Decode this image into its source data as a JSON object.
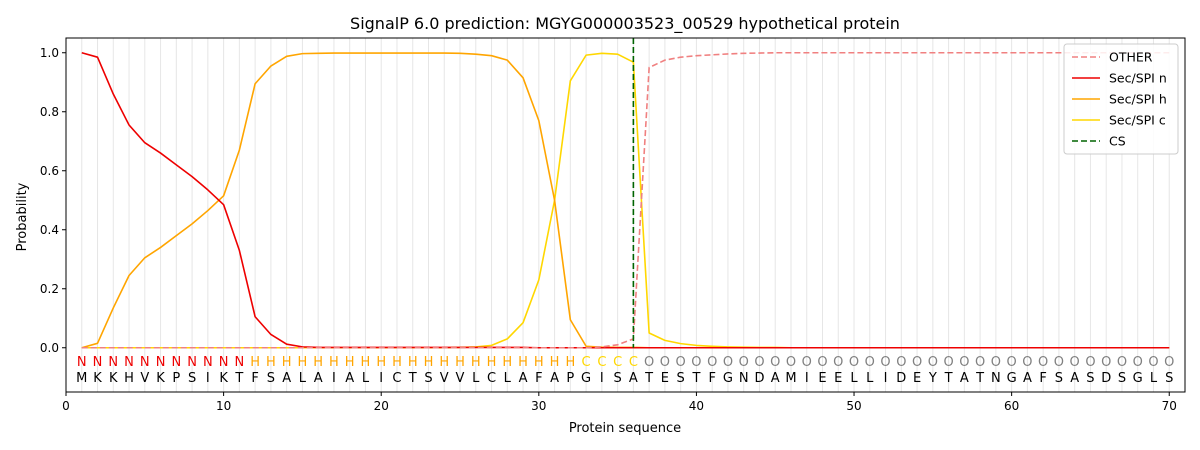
{
  "chart_data": {
    "type": "line",
    "title": "SignalP 6.0 prediction: MGYG000003523_00529 hypothetical protein",
    "xlabel": "Protein sequence",
    "ylabel": "Probability",
    "xlim": [
      0,
      71
    ],
    "ylim": [
      -0.15,
      1.05
    ],
    "x_ticks": [
      0,
      10,
      20,
      30,
      40,
      50,
      60,
      70
    ],
    "y_ticks": [
      0.0,
      0.2,
      0.4,
      0.6,
      0.8,
      1.0
    ],
    "x_tick_labels": [
      "0",
      "10",
      "20",
      "30",
      "40",
      "50",
      "60",
      "70"
    ],
    "y_tick_labels": [
      "0.0",
      "0.2",
      "0.4",
      "0.6",
      "0.8",
      "1.0"
    ],
    "grid": "vertical lines at each residue",
    "legend_position": "top-right",
    "sequence": "MKKHVKPSIKTFSALAIALICTSVVLCLAFAPGISATESTFGNDAMIEELLIDEYTATNGAFSASDSGLS",
    "labels": "NNNNNNNNNNNHHHHHHHHHHHHHHHHHHHHHCCCCOOOOOOOOOOOOOOOOOOOOOOOOOOOOOOOOOO",
    "label_colors": {
      "N": "#ee0000",
      "H": "#ffa500",
      "C": "#ffd700",
      "O": "#808080"
    },
    "cleavage_site": 36,
    "series": [
      {
        "name": "OTHER",
        "color": "#f08080",
        "style": "dashed",
        "values": [
          0,
          0,
          0,
          0,
          0,
          0,
          0,
          0,
          0,
          0,
          0,
          0,
          0,
          0,
          0,
          0,
          0,
          0,
          0,
          0,
          0,
          0,
          0,
          0,
          0,
          0,
          0,
          0,
          0,
          0,
          0,
          0,
          0,
          0.003,
          0.01,
          0.03,
          0.95,
          0.975,
          0.985,
          0.99,
          0.993,
          0.996,
          0.998,
          0.999,
          1,
          1,
          1,
          1,
          1,
          1,
          1,
          1,
          1,
          1,
          1,
          1,
          1,
          1,
          1,
          1,
          1,
          1,
          1,
          1,
          1,
          1,
          1,
          1,
          1,
          1
        ]
      },
      {
        "name": "Sec/SPI n",
        "color": "#ee0000",
        "style": "solid",
        "values": [
          1.0,
          0.985,
          0.86,
          0.755,
          0.695,
          0.66,
          0.62,
          0.58,
          0.535,
          0.485,
          0.33,
          0.105,
          0.045,
          0.012,
          0.003,
          0.001,
          0.001,
          0.001,
          0.001,
          0.001,
          0.001,
          0.001,
          0.001,
          0.001,
          0.001,
          0.001,
          0.001,
          0.001,
          0.001,
          0,
          0,
          0,
          0,
          0,
          0,
          0,
          0,
          0,
          0,
          0,
          0,
          0,
          0,
          0,
          0,
          0,
          0,
          0,
          0,
          0,
          0,
          0,
          0,
          0,
          0,
          0,
          0,
          0,
          0,
          0,
          0,
          0,
          0,
          0,
          0,
          0,
          0,
          0,
          0,
          0
        ]
      },
      {
        "name": "Sec/SPI h",
        "color": "#ffa500",
        "style": "solid",
        "values": [
          0,
          0.015,
          0.135,
          0.245,
          0.305,
          0.34,
          0.38,
          0.42,
          0.465,
          0.515,
          0.67,
          0.895,
          0.955,
          0.988,
          0.997,
          0.998,
          0.999,
          0.999,
          0.999,
          0.999,
          0.999,
          0.999,
          0.999,
          0.999,
          0.998,
          0.995,
          0.99,
          0.975,
          0.915,
          0.77,
          0.5,
          0.095,
          0.005,
          0.002,
          0.001,
          0.001,
          0,
          0,
          0,
          0,
          0,
          0,
          0,
          0,
          0,
          0,
          0,
          0,
          0,
          0,
          0,
          0,
          0,
          0,
          0,
          0,
          0,
          0,
          0,
          0,
          0,
          0,
          0,
          0,
          0,
          0,
          0,
          0,
          0,
          0
        ]
      },
      {
        "name": "Sec/SPI c",
        "color": "#ffd700",
        "style": "solid",
        "values": [
          0,
          0,
          0,
          0,
          0,
          0,
          0,
          0,
          0,
          0,
          0,
          0,
          0,
          0,
          0,
          0,
          0,
          0,
          0,
          0,
          0,
          0,
          0,
          0,
          0.001,
          0.003,
          0.008,
          0.03,
          0.085,
          0.23,
          0.5,
          0.905,
          0.992,
          0.998,
          0.995,
          0.968,
          0.05,
          0.025,
          0.014,
          0.008,
          0.005,
          0.003,
          0.002,
          0.001,
          0.001,
          0,
          0,
          0,
          0,
          0,
          0,
          0,
          0,
          0,
          0,
          0,
          0,
          0,
          0,
          0,
          0,
          0,
          0,
          0,
          0,
          0,
          0,
          0,
          0,
          0
        ]
      },
      {
        "name": "CS",
        "color": "#006400",
        "style": "dashed",
        "values": []
      }
    ]
  }
}
